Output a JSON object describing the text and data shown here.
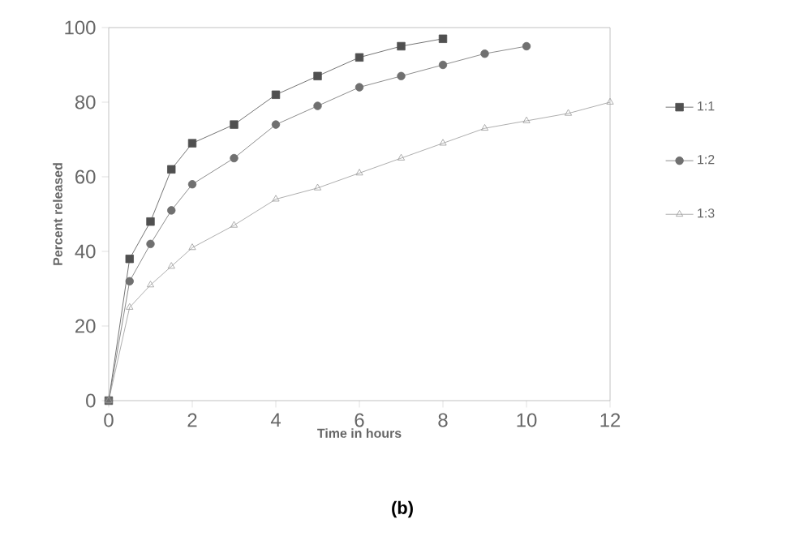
{
  "chart_data": {
    "type": "line",
    "xlabel": "Time in hours",
    "ylabel": "Percent released",
    "annotations": [
      "**(b)**"
    ],
    "xlim": [
      0,
      12
    ],
    "ylim": [
      0,
      100
    ],
    "xticks": [
      0,
      2,
      4,
      6,
      8,
      10,
      12
    ],
    "yticks": [
      0,
      20,
      40,
      60,
      80,
      100
    ],
    "legend": "right",
    "series": [
      {
        "name": "1:1",
        "color": "#505050",
        "marker": "square",
        "x": [
          0,
          0.5,
          1,
          1.5,
          2,
          3,
          4,
          5,
          6,
          7,
          8
        ],
        "values": [
          0,
          38,
          48,
          62,
          69,
          74,
          82,
          87,
          92,
          95,
          97
        ]
      },
      {
        "name": "1:2",
        "color": "#707070",
        "marker": "circle",
        "x": [
          0,
          0.5,
          1,
          1.5,
          2,
          3,
          4,
          5,
          6,
          7,
          8,
          9,
          10
        ],
        "values": [
          0,
          32,
          42,
          51,
          58,
          65,
          74,
          79,
          84,
          87,
          90,
          93,
          95
        ]
      },
      {
        "name": "1:3",
        "color": "#999999",
        "marker": "triangle",
        "x": [
          0,
          0.5,
          1,
          1.5,
          2,
          3,
          4,
          5,
          6,
          7,
          8,
          9,
          10,
          11,
          12
        ],
        "values": [
          0,
          25,
          31,
          36,
          41,
          47,
          54,
          57,
          61,
          65,
          69,
          73,
          75,
          77,
          80
        ]
      }
    ]
  }
}
